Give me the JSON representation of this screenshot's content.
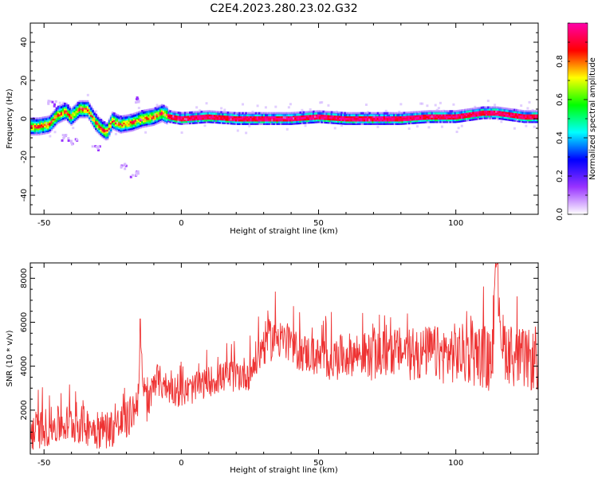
{
  "title": "C2E4.2023.280.23.02.G32",
  "chart_data": [
    {
      "type": "heatmap",
      "xlabel": "Height of straight line (km)",
      "ylabel": "Frequency (Hz)",
      "xlim": [
        -55,
        130
      ],
      "ylim": [
        -50,
        50
      ],
      "xticks": [
        -50,
        0,
        50,
        100
      ],
      "yticks": [
        -40,
        -20,
        0,
        20,
        40
      ],
      "colorbar": {
        "label": "Normalized spectral amplitude",
        "range": [
          0,
          1
        ],
        "ticks": [
          0.0,
          0.2,
          0.4,
          0.6,
          0.8
        ],
        "colors": [
          "#ffffff",
          "#9933ff",
          "#0000ff",
          "#00ffff",
          "#00ff00",
          "#ffff00",
          "#ff0000",
          "#ff00aa"
        ]
      },
      "ridge": {
        "x": [
          -52,
          -48,
          -45,
          -42,
          -40,
          -37,
          -34,
          -31,
          -29,
          -27,
          -25,
          -22,
          -18,
          -14,
          -10,
          -7,
          -4,
          0,
          10,
          20,
          30,
          40,
          50,
          60,
          70,
          80,
          90,
          100,
          105,
          110,
          115,
          120,
          125,
          130
        ],
        "y": [
          -4,
          -3,
          2,
          4,
          1,
          5,
          5,
          -2,
          -5,
          -7,
          -1,
          -3,
          -2,
          0,
          1,
          3,
          1,
          0,
          1,
          0,
          0,
          0,
          1,
          0,
          0,
          0,
          1,
          1,
          2,
          3,
          3,
          2,
          1,
          1
        ]
      },
      "sparse_blobs": [
        {
          "x": -47,
          "y": 8
        },
        {
          "x": -42,
          "y": -10
        },
        {
          "x": -39,
          "y": -12
        },
        {
          "x": -31,
          "y": -15
        },
        {
          "x": -21,
          "y": -25
        },
        {
          "x": -17,
          "y": -29
        },
        {
          "x": -16,
          "y": 10
        }
      ]
    },
    {
      "type": "line",
      "xlabel": "Height of straight line (km)",
      "ylabel": "SNR (10 * v/v)",
      "xlim": [
        -55,
        130
      ],
      "ylim": [
        0,
        8700
      ],
      "xticks": [
        -50,
        0,
        50,
        100
      ],
      "yticks": [
        2000,
        4000,
        6000,
        8000
      ],
      "series": [
        {
          "color": "#ee3333",
          "x": [
            -55,
            -50,
            -45,
            -40,
            -35,
            -30,
            -25,
            -20,
            -16,
            -15,
            -14,
            -12,
            -10,
            -5,
            0,
            5,
            10,
            15,
            20,
            25,
            30,
            35,
            40,
            45,
            50,
            55,
            60,
            65,
            70,
            75,
            80,
            85,
            90,
            95,
            100,
            105,
            110,
            113,
            115,
            117,
            120,
            125,
            130
          ],
          "y": [
            1000,
            1200,
            1300,
            1400,
            1300,
            1100,
            1200,
            1500,
            2300,
            5000,
            3000,
            2000,
            3500,
            3000,
            2800,
            3000,
            3300,
            3500,
            3600,
            3700,
            5000,
            5400,
            4800,
            4600,
            4400,
            4300,
            4500,
            4600,
            4400,
            4600,
            4700,
            4400,
            4700,
            4500,
            4600,
            4500,
            4500,
            4000,
            8600,
            5000,
            4500,
            4300,
            4200
          ],
          "noise": [
            900,
            900,
            900,
            900,
            900,
            900,
            900,
            900,
            900,
            900,
            900,
            900,
            800,
            700,
            700,
            700,
            700,
            700,
            800,
            800,
            1000,
            1000,
            900,
            900,
            900,
            1000,
            1000,
            1000,
            1100,
            1100,
            1100,
            1200,
            1200,
            1300,
            1400,
            1400,
            1500,
            1500,
            1500,
            1500,
            1400,
            1400,
            1400
          ]
        }
      ]
    }
  ]
}
